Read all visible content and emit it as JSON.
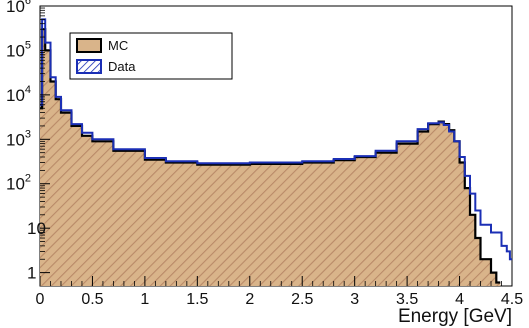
{
  "chart_data": {
    "type": "histogram",
    "xlabel": "Energy [GeV]",
    "xlim": [
      0,
      4.5
    ],
    "ylim": [
      0.5,
      1000000
    ],
    "y_scale": "log",
    "x_ticks": [
      "0",
      "0.5",
      "1",
      "1.5",
      "2",
      "2.5",
      "3",
      "3.5",
      "4",
      "4.5"
    ],
    "y_ticks": [
      {
        "base": "1",
        "exp": ""
      },
      {
        "base": "10",
        "exp": ""
      },
      {
        "base": "10",
        "exp": "2"
      },
      {
        "base": "10",
        "exp": "3"
      },
      {
        "base": "10",
        "exp": "4"
      },
      {
        "base": "10",
        "exp": "5"
      },
      {
        "base": "10",
        "exp": "6"
      }
    ],
    "legend_position": "top-left",
    "series": [
      {
        "name": "MC",
        "style": "filled-hatched",
        "fill_color": "#d9b48a",
        "line_color": "#000000",
        "x": [
          0.0,
          0.02,
          0.05,
          0.1,
          0.15,
          0.2,
          0.3,
          0.4,
          0.5,
          0.7,
          1.0,
          1.2,
          1.5,
          2.0,
          2.5,
          2.8,
          3.0,
          3.2,
          3.4,
          3.6,
          3.7,
          3.8,
          3.85,
          3.9,
          3.95,
          4.0,
          4.05,
          4.1,
          4.15,
          4.2,
          4.3,
          4.35
        ],
        "y": [
          5000,
          300000,
          100000,
          20000,
          8000,
          4000,
          2000,
          1200,
          900,
          550,
          350,
          300,
          270,
          280,
          300,
          340,
          400,
          500,
          800,
          1500,
          2200,
          2500,
          2200,
          1600,
          900,
          300,
          80,
          20,
          6,
          2,
          1,
          0.6
        ]
      },
      {
        "name": "Data",
        "style": "line",
        "line_color": "#1b2fb5",
        "x": [
          0.0,
          0.02,
          0.05,
          0.1,
          0.15,
          0.2,
          0.3,
          0.4,
          0.5,
          0.7,
          1.0,
          1.2,
          1.5,
          2.0,
          2.5,
          2.8,
          3.0,
          3.2,
          3.4,
          3.6,
          3.7,
          3.8,
          3.85,
          3.9,
          3.95,
          4.0,
          4.05,
          4.1,
          4.15,
          4.2,
          4.3,
          4.4,
          4.45,
          4.48
        ],
        "y": [
          6000,
          500000,
          150000,
          25000,
          9000,
          4500,
          2200,
          1400,
          1000,
          600,
          380,
          320,
          290,
          300,
          320,
          360,
          420,
          550,
          900,
          1700,
          2300,
          2400,
          2100,
          1500,
          900,
          400,
          150,
          60,
          25,
          12,
          8,
          4,
          3,
          2
        ]
      }
    ]
  }
}
